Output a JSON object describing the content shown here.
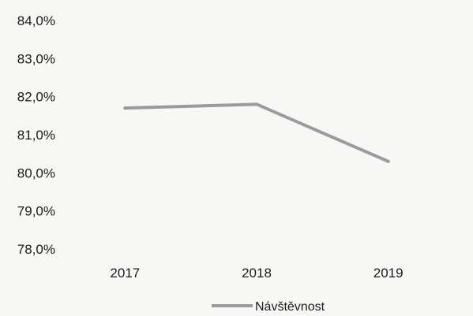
{
  "chart_data": {
    "type": "line",
    "categories": [
      "2017",
      "2018",
      "2019"
    ],
    "series": [
      {
        "name": "Návštěvnost",
        "values": [
          81.7,
          81.8,
          80.3
        ]
      }
    ],
    "ylim": [
      78.0,
      84.0
    ],
    "yticks": [
      "78,0%",
      "79,0%",
      "80,0%",
      "81,0%",
      "82,0%",
      "83,0%",
      "84,0%"
    ],
    "grid": false,
    "legend": "bottom",
    "colors": {
      "series": "#9b9b9b",
      "text": "#1a1a1a"
    }
  }
}
